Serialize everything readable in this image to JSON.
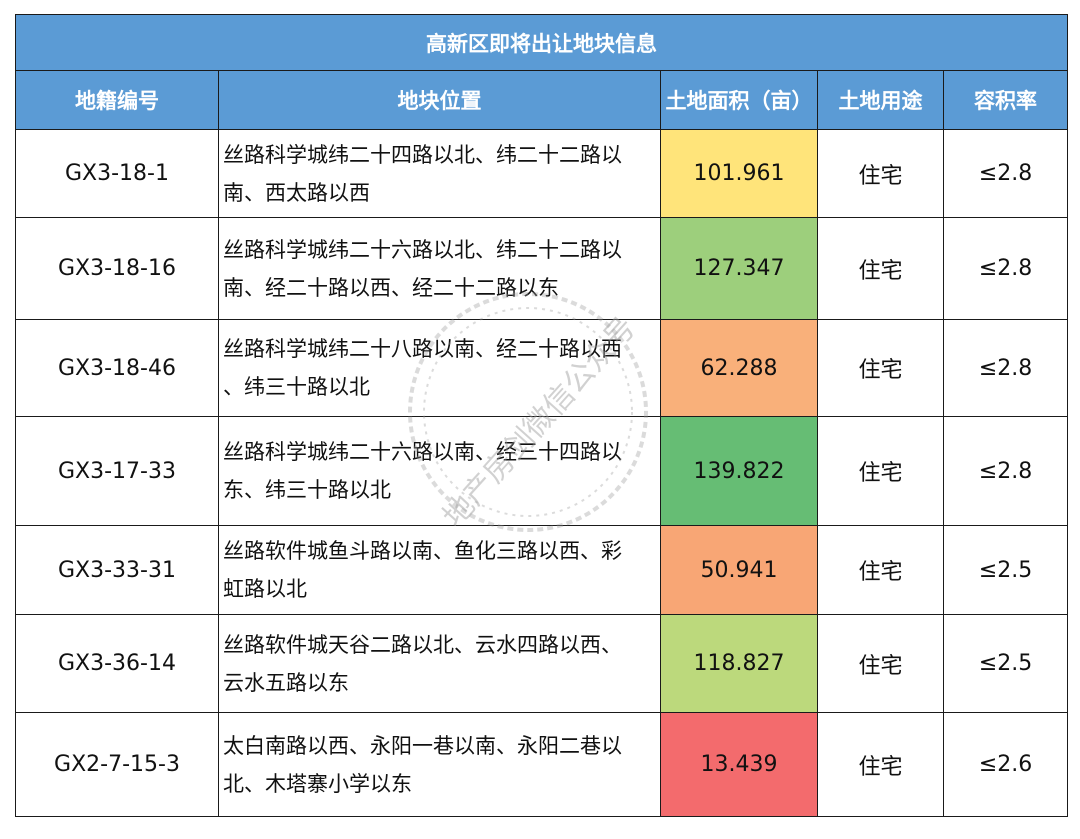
{
  "title": "高新区即将出让地块信息",
  "headers": {
    "code": "地籍编号",
    "location": "地块位置",
    "area": "土地面积（亩）",
    "use": "土地用途",
    "far": "容积率"
  },
  "rows": [
    {
      "code": "GX3-18-1",
      "loc1": "丝路科学城纬二十四路以北、纬二十二路以",
      "loc2": "南、西太路以西",
      "area": "101.961",
      "use": "住宅",
      "far": "≤2.8",
      "color": "#ffe47a"
    },
    {
      "code": "GX3-18-16",
      "loc1": "丝路科学城纬二十六路以北、纬二十二路以",
      "loc2": "南、经二十路以西、经二十二路以东",
      "area": "127.347",
      "use": "住宅",
      "far": "≤2.8",
      "color": "#9dcf7c"
    },
    {
      "code": "GX3-18-46",
      "loc1": "丝路科学城纬二十八路以南、经二十路以西",
      "loc2": "、纬三十路以北",
      "area": "62.288",
      "use": "住宅",
      "far": "≤2.8",
      "color": "#f9b07a"
    },
    {
      "code": "GX3-17-33",
      "loc1": "丝路科学城纬二十六路以南、经三十四路以",
      "loc2": "东、纬三十路以北",
      "area": "139.822",
      "use": "住宅",
      "far": "≤2.8",
      "color": "#66bd74"
    },
    {
      "code": "GX3-33-31",
      "loc1": "丝路软件城鱼斗路以南、鱼化三路以西、彩",
      "loc2": "虹路以北",
      "area": "50.941",
      "use": "住宅",
      "far": "≤2.5",
      "color": "#f8a675"
    },
    {
      "code": "GX3-36-14",
      "loc1": "丝路软件城天谷二路以北、云水四路以西、",
      "loc2": "云水五路以东",
      "area": "118.827",
      "use": "住宅",
      "far": "≤2.5",
      "color": "#bcd97c"
    },
    {
      "code": "GX2-7-15-3",
      "loc1": "太白南路以西、永阳一巷以南、永阳二巷以",
      "loc2": "北、木塔寨小学以东",
      "area": "13.439",
      "use": "住宅",
      "far": "≤2.6",
      "color": "#f36b6d"
    }
  ],
  "watermark": {
    "text": "地产房剑微信公众号"
  }
}
